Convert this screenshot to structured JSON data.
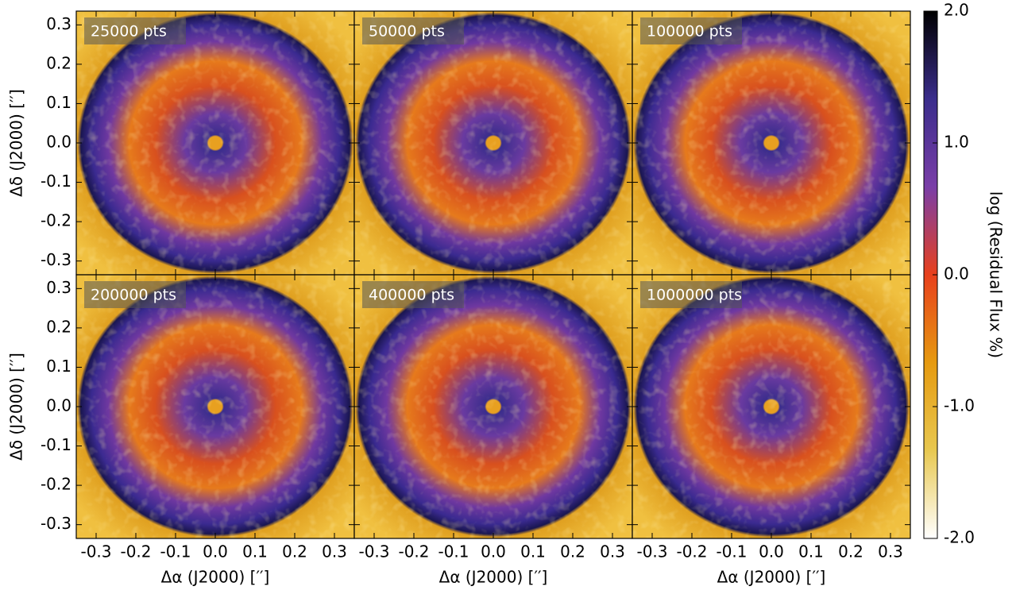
{
  "chart_data": {
    "type": "image",
    "panels": [
      {
        "label": "25000 pts"
      },
      {
        "label": "50000 pts"
      },
      {
        "label": "100000 pts"
      },
      {
        "label": "200000 pts"
      },
      {
        "label": "400000 pts"
      },
      {
        "label": "1000000 pts"
      }
    ],
    "xlabel": "Δα (J2000) [′′]",
    "ylabel": "Δδ (J2000) [′′]",
    "xlim": [
      -0.35,
      0.35
    ],
    "ylim": [
      -0.335,
      0.335
    ],
    "xticks": [
      -0.3,
      -0.2,
      -0.1,
      {
        "value": 0,
        "label": "0.0"
      },
      0.1,
      0.2,
      0.3
    ],
    "yticks": [
      -0.3,
      -0.2,
      -0.1,
      {
        "value": 0,
        "label": "0.0"
      },
      0.1,
      0.2,
      0.3
    ],
    "colorbar": {
      "label": "log (Residual Flux %)",
      "lim": [
        -2,
        2
      ],
      "ticks": [
        {
          "value": 2,
          "label": "2.0"
        },
        {
          "value": 1,
          "label": "1.0"
        },
        {
          "value": 0,
          "label": "0.0"
        },
        {
          "value": -1,
          "label": "-1.0"
        },
        {
          "value": -2,
          "label": "-2.0"
        }
      ],
      "colors": [
        "#ffffff",
        "#e8c850",
        "#e69a10",
        "#e8401c",
        "#7a3ea8",
        "#3a2d8c",
        "#000000"
      ]
    }
  }
}
